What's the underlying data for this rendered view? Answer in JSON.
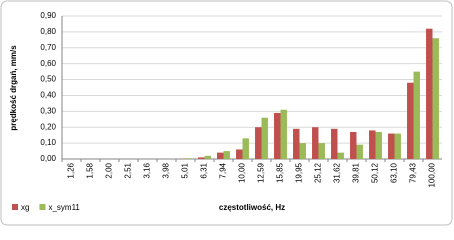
{
  "chart_data": {
    "type": "bar",
    "y_label": "prędkość drgań, mm/s",
    "x_label": "częstotliwość, Hz",
    "categories": [
      "1,26",
      "1,58",
      "2,00",
      "2,51",
      "3,16",
      "3,98",
      "5,01",
      "6,31",
      "7,94",
      "10,00",
      "12,59",
      "15,85",
      "19,95",
      "25,12",
      "31,62",
      "39,81",
      "50,12",
      "63,10",
      "79,43",
      "100,00"
    ],
    "series": [
      {
        "name": "xg",
        "color": "#c0504d",
        "values": [
          0,
          0,
          0,
          0,
          0,
          0,
          0.002,
          0.01,
          0.04,
          0.06,
          0.2,
          0.29,
          0.19,
          0.2,
          0.19,
          0.17,
          0.18,
          0.16,
          0.48,
          0.82
        ]
      },
      {
        "name": "x_sym11",
        "color": "#9bbb59",
        "values": [
          0,
          0,
          0,
          0,
          0,
          0,
          0.005,
          0.02,
          0.05,
          0.13,
          0.26,
          0.31,
          0.1,
          0.1,
          0.04,
          0.09,
          0.17,
          0.16,
          0.55,
          0.76
        ]
      }
    ],
    "ylim": [
      0,
      0.9
    ],
    "yticks": [
      {
        "value": 0,
        "label": "0,00"
      },
      {
        "value": 0.1,
        "label": "0,10"
      },
      {
        "value": 0.2,
        "label": "0,20"
      },
      {
        "value": 0.3,
        "label": "0,30"
      },
      {
        "value": 0.4,
        "label": "0,40"
      },
      {
        "value": 0.5,
        "label": "0,50"
      },
      {
        "value": 0.6,
        "label": "0,60"
      },
      {
        "value": 0.7,
        "label": "0,70"
      },
      {
        "value": 0.8,
        "label": "0,80"
      },
      {
        "value": 0.9,
        "label": "0,90"
      }
    ],
    "grid": true,
    "legend": "bottom-left"
  }
}
